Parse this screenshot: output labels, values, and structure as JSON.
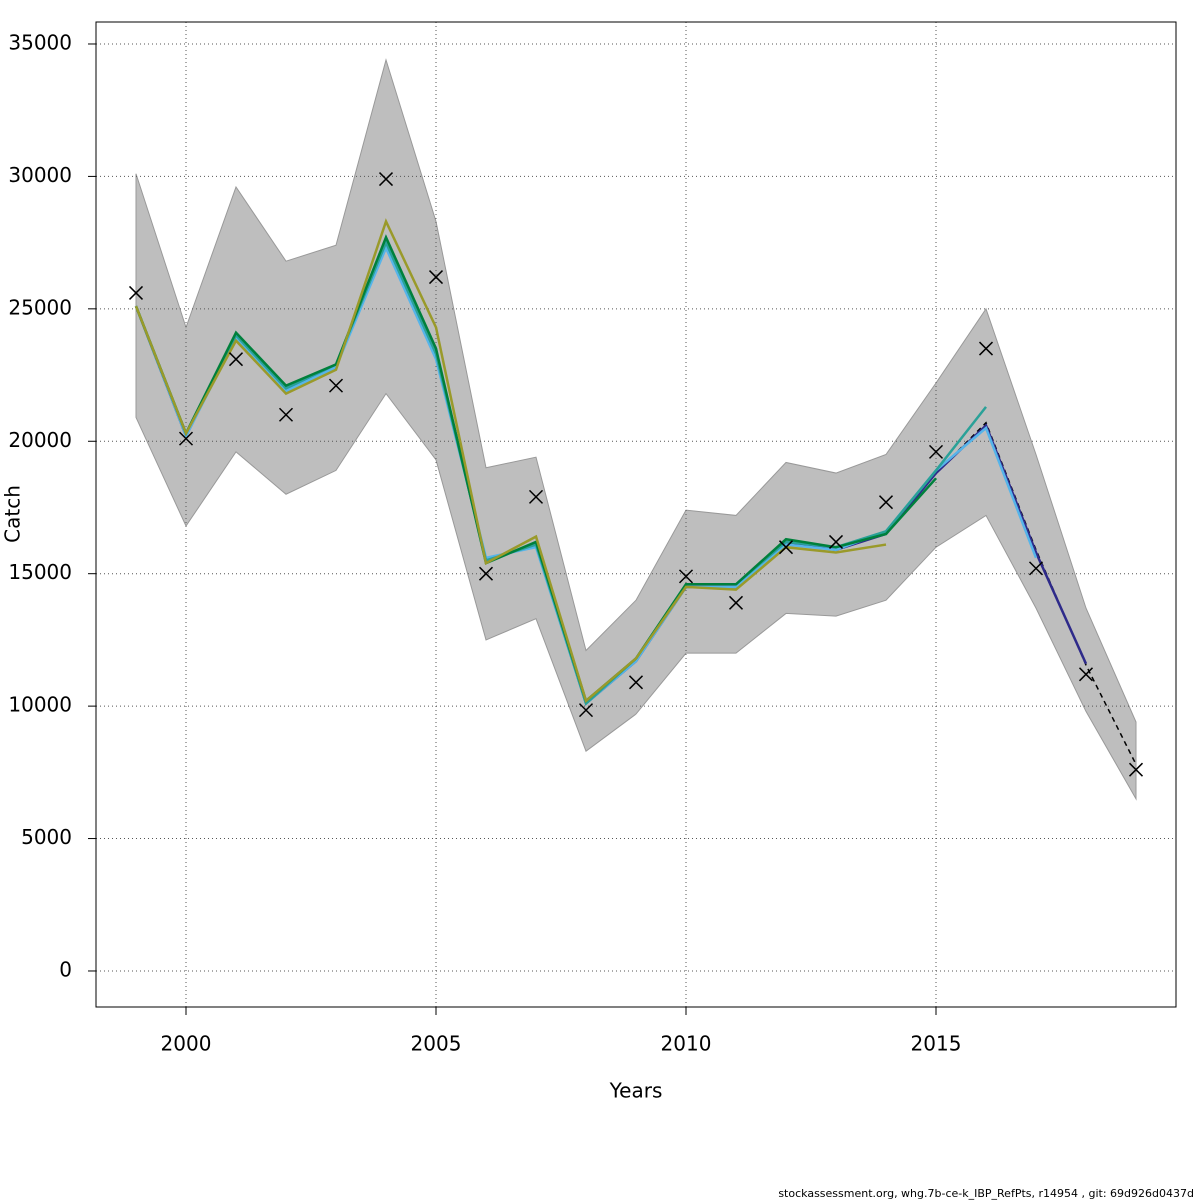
{
  "chart_data": {
    "type": "line",
    "x_label": "Years",
    "y_label": "Catch",
    "footnote": "stockassessment.org, whg.7b-ce-k_IBP_RefPts, r14954 , git: 69d926d0437d",
    "x": [
      1999,
      2000,
      2001,
      2002,
      2003,
      2004,
      2005,
      2006,
      2007,
      2008,
      2009,
      2010,
      2011,
      2012,
      2013,
      2014,
      2015,
      2016,
      2017,
      2018,
      2019
    ],
    "band": {
      "color": "#bebebe",
      "upper": [
        30100,
        24300,
        29600,
        26800,
        27400,
        34400,
        28300,
        19000,
        19400,
        12100,
        14000,
        17400,
        17200,
        19200,
        18800,
        19500,
        22200,
        25000,
        19500,
        13700,
        9400
      ],
      "lower": [
        20900,
        16800,
        19600,
        18000,
        18900,
        21800,
        19300,
        12500,
        13300,
        8300,
        9700,
        12000,
        12000,
        13500,
        13400,
        14000,
        16000,
        17200,
        13700,
        9800,
        6500
      ]
    },
    "series": [
      {
        "color": "#000000",
        "dashed": true,
        "values": [
          25100,
          20200,
          24000,
          22000,
          22800,
          27600,
          23400,
          15500,
          16100,
          10100,
          11700,
          14500,
          14500,
          16200,
          15900,
          16500,
          18800,
          20700,
          15900,
          11550,
          7800
        ]
      },
      {
        "color": "#2e2a8a",
        "values": [
          25100,
          20200,
          24000,
          22000,
          22800,
          27600,
          23400,
          15500,
          16100,
          10100,
          11700,
          14500,
          14500,
          16200,
          15900,
          16500,
          18800,
          20600,
          15800,
          11600,
          null
        ]
      },
      {
        "color": "#56b4e9",
        "values": [
          25100,
          20200,
          23900,
          21900,
          22800,
          27300,
          23100,
          15600,
          16000,
          10100,
          11700,
          14500,
          14500,
          16100,
          15900,
          16600,
          18900,
          20500,
          15600,
          null,
          null
        ]
      },
      {
        "color": "#2aa198",
        "values": [
          25100,
          20300,
          24000,
          22000,
          22900,
          27500,
          23300,
          15500,
          16100,
          10100,
          11800,
          14600,
          14600,
          16200,
          16000,
          16600,
          18900,
          21300,
          null,
          null,
          null
        ]
      },
      {
        "color": "#00803c",
        "values": [
          25100,
          20300,
          24100,
          22100,
          22900,
          27700,
          23500,
          15400,
          16200,
          10200,
          11800,
          14600,
          14600,
          16300,
          16000,
          16500,
          18600,
          null,
          null,
          null,
          null
        ]
      },
      {
        "color": "#9a9a2a",
        "values": [
          25100,
          20300,
          23800,
          21800,
          22700,
          28300,
          24300,
          15400,
          16400,
          10200,
          11800,
          14500,
          14400,
          16000,
          15800,
          16100,
          null,
          null,
          null,
          null,
          null
        ]
      }
    ],
    "observed": {
      "color": "#000000",
      "values": [
        25600,
        20100,
        23100,
        21000,
        22100,
        29900,
        26200,
        15000,
        17900,
        9850,
        10900,
        14900,
        13900,
        16000,
        16200,
        17700,
        19600,
        23500,
        15200,
        11200,
        7600
      ]
    },
    "xlim": [
      1998.2,
      2019.8
    ],
    "xticks": [
      2000,
      2005,
      2010,
      2015
    ],
    "ylim": [
      -1360,
      35830
    ],
    "yticks": [
      0,
      5000,
      10000,
      15000,
      20000,
      25000,
      30000,
      35000
    ],
    "grid": true
  }
}
